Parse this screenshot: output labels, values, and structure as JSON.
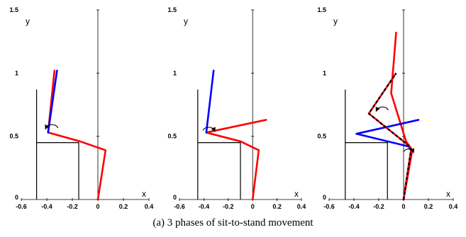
{
  "caption": "(a) 3 phases of sit-to-stand movement",
  "chart_data": [
    {
      "type": "line",
      "panel": 1,
      "xlabel": "x",
      "ylabel": "y",
      "xlim": [
        -0.6,
        0.4
      ],
      "ylim": [
        0,
        1.5
      ],
      "xticks": [
        "-0.6",
        "-0.4",
        "-0.2",
        "0",
        "0.2",
        "0.4"
      ],
      "yticks": [
        "0",
        "0.5",
        "1",
        "1.5"
      ],
      "chair": {
        "x": -0.48,
        "y": 0.87,
        "seat_y": 0.45,
        "leg_x": -0.15
      },
      "series": [
        {
          "color": "#ff0000",
          "x": [
            0.0,
            0.06,
            -0.14,
            -0.39,
            -0.34
          ],
          "y": [
            0.0,
            0.39,
            0.46,
            0.53,
            1.02
          ]
        },
        {
          "color": "#0000ff",
          "x": [
            -0.39,
            -0.32
          ],
          "y": [
            0.53,
            1.02
          ]
        }
      ],
      "arrows": [
        {
          "cx": -0.36,
          "cy": 0.58,
          "r": 0.05,
          "direction": "counterclockwise"
        }
      ]
    },
    {
      "type": "line",
      "panel": 2,
      "xlabel": "x",
      "ylabel": "y",
      "xlim": [
        -0.6,
        0.4
      ],
      "ylim": [
        0,
        1.5
      ],
      "xticks": [
        "-0.6",
        "-0.4",
        "-0.2",
        "0",
        "0.2",
        "0.4"
      ],
      "yticks": [
        "0",
        "0.5",
        "1",
        "1.5"
      ],
      "chair": {
        "x": -0.45,
        "y": 0.87,
        "seat_y": 0.45,
        "leg_x": -0.1
      },
      "series": [
        {
          "color": "#ff0000",
          "x": [
            0.0,
            0.05,
            -0.1,
            -0.38,
            0.11
          ],
          "y": [
            0.0,
            0.39,
            0.46,
            0.53,
            0.63
          ]
        },
        {
          "color": "#0000ff",
          "x": [
            -0.38,
            -0.32
          ],
          "y": [
            0.53,
            1.02
          ]
        }
      ],
      "arrows": [
        {
          "cx": -0.36,
          "cy": 0.56,
          "r": 0.05,
          "direction": "clockwise"
        }
      ]
    },
    {
      "type": "line",
      "panel": 3,
      "xlabel": "x",
      "ylabel": "y",
      "xlim": [
        -0.6,
        0.4
      ],
      "ylim": [
        0,
        1.5
      ],
      "xticks": [
        "-0.6",
        "-0.4",
        "-0.2",
        "0",
        "0.2",
        "0.4"
      ],
      "yticks": [
        "0",
        "0.5",
        "1",
        "1.5"
      ],
      "chair": {
        "x": -0.47,
        "y": 0.87,
        "seat_y": 0.45,
        "leg_x": -0.13
      },
      "series": [
        {
          "color": "#ff0000",
          "x": [
            0.0,
            0.07,
            0.02,
            -0.1,
            -0.06
          ],
          "y": [
            0.0,
            0.39,
            0.46,
            0.84,
            1.32
          ]
        },
        {
          "color": "#0000ff",
          "x": [
            0.0,
            0.06,
            0.04,
            -0.38,
            0.12
          ],
          "y": [
            0.0,
            0.39,
            0.42,
            0.52,
            0.63
          ]
        },
        {
          "color": "#000000",
          "dashed": true,
          "x": [
            0.0,
            0.06,
            0.05,
            -0.28,
            -0.06
          ],
          "y": [
            0.0,
            0.39,
            0.42,
            0.68,
            1.0
          ]
        }
      ],
      "arrows": [
        {
          "cx": -0.17,
          "cy": 0.72,
          "r": 0.05,
          "direction": "counterclockwise"
        },
        {
          "cx": 0.04,
          "cy": 0.39,
          "r": 0.04,
          "direction": "clockwise"
        }
      ]
    }
  ]
}
